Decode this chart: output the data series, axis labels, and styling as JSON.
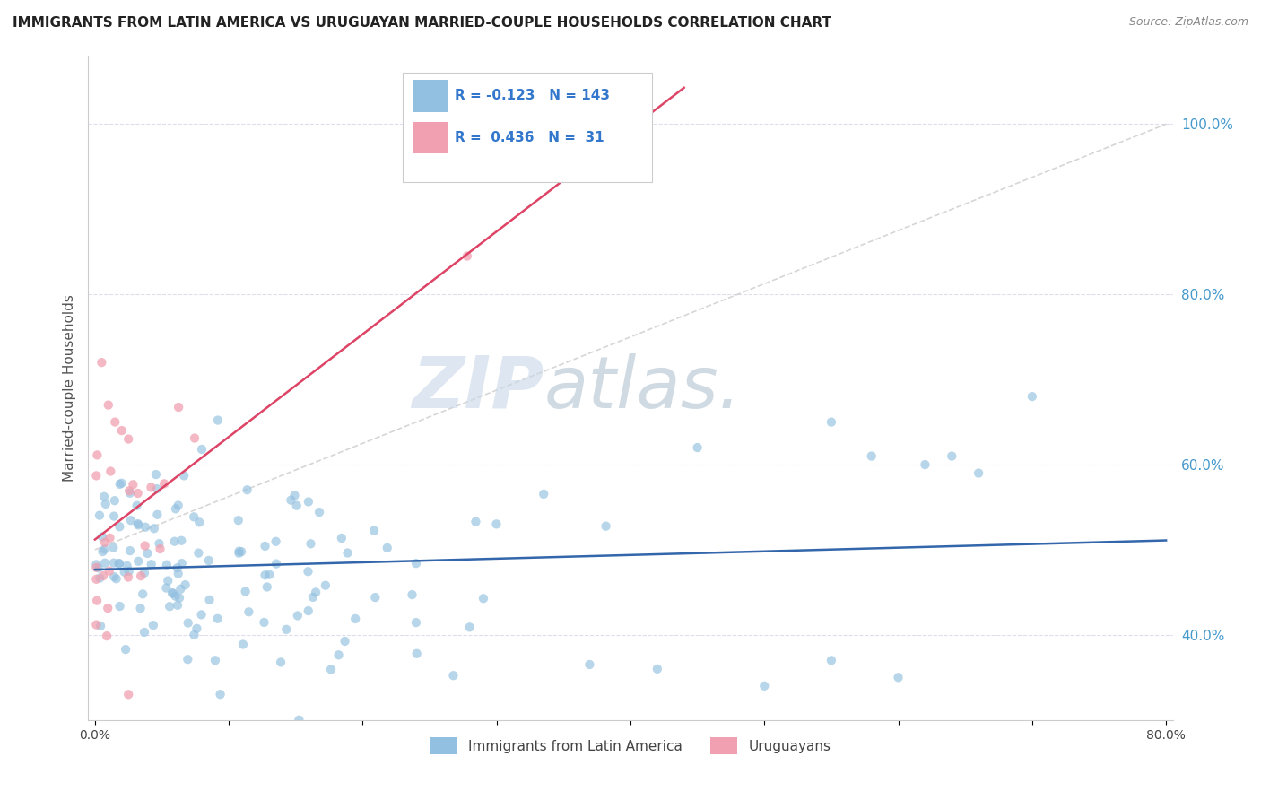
{
  "title": "IMMIGRANTS FROM LATIN AMERICA VS URUGUAYAN MARRIED-COUPLE HOUSEHOLDS CORRELATION CHART",
  "source": "Source: ZipAtlas.com",
  "ylabel": "Married-couple Households",
  "legend_label1": "Immigrants from Latin America",
  "legend_label2": "Uruguayans",
  "R1": -0.123,
  "N1": 143,
  "R2": 0.436,
  "N2": 31,
  "xlim": [
    0.0,
    0.8
  ],
  "ylim": [
    0.3,
    1.08
  ],
  "xtick_vals": [
    0.0,
    0.1,
    0.2,
    0.3,
    0.4,
    0.5,
    0.6,
    0.7,
    0.8
  ],
  "xtick_labels": [
    "0.0%",
    "",
    "",
    "",
    "",
    "",
    "",
    "",
    "80.0%"
  ],
  "ytick_vals": [
    0.4,
    0.6,
    0.8,
    1.0
  ],
  "ytick_labels": [
    "40.0%",
    "60.0%",
    "80.0%",
    "100.0%"
  ],
  "color_blue": "#92C0E0",
  "color_pink": "#F0A0B0",
  "color_trendline_blue": "#3366AA",
  "color_trendline_pink": "#DD4466",
  "color_trendline_gray": "#CCCCCC",
  "watermark_zip_color": "#CCDDEE",
  "watermark_atlas_color": "#AACCDD",
  "background_color": "#FFFFFF"
}
